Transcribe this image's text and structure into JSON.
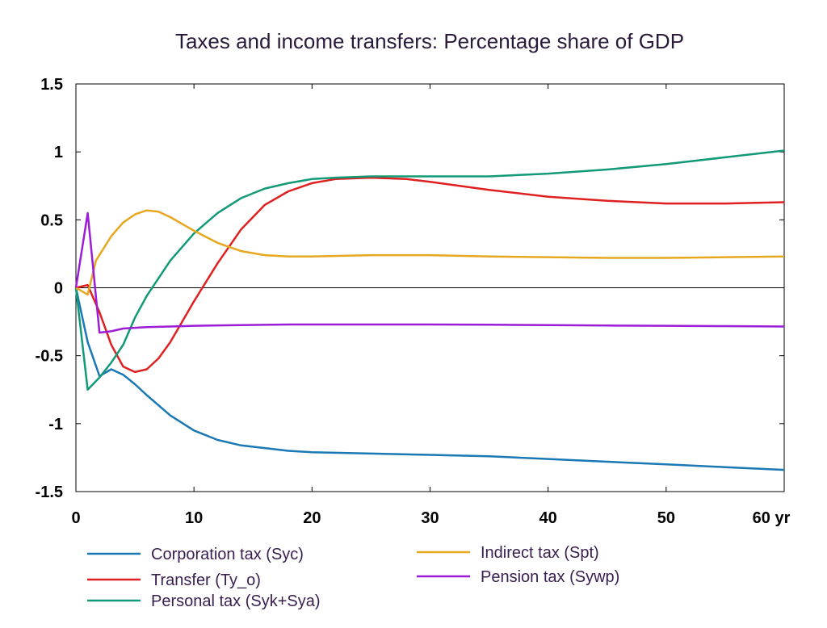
{
  "chart_data": {
    "type": "line",
    "title": "Taxes and income transfers: Percentage share of GDP",
    "xlabel": "",
    "ylabel": "",
    "xlim": [
      0,
      60
    ],
    "ylim": [
      -1.5,
      1.5
    ],
    "x_ticks": [
      0,
      10,
      20,
      30,
      40,
      50,
      60
    ],
    "x_tick_labels": [
      "0",
      "10",
      "20",
      "30",
      "40",
      "50",
      "60 yr"
    ],
    "y_ticks": [
      1.5,
      1,
      0.5,
      0,
      -0.5,
      -1,
      -1.5
    ],
    "y_tick_labels": [
      "1.5",
      "1",
      "0.5",
      "0",
      "-0.5",
      "-1",
      "-1.5"
    ],
    "grid": false,
    "zero_line": true,
    "legend": "bottom",
    "series": [
      {
        "name": "Corporation tax (Syc)",
        "color": "#1a78b4",
        "points": [
          [
            0,
            0
          ],
          [
            1,
            -0.4
          ],
          [
            2,
            -0.65
          ],
          [
            3,
            -0.6
          ],
          [
            4,
            -0.64
          ],
          [
            5,
            -0.71
          ],
          [
            6,
            -0.79
          ],
          [
            8,
            -0.94
          ],
          [
            10,
            -1.05
          ],
          [
            12,
            -1.12
          ],
          [
            14,
            -1.16
          ],
          [
            16,
            -1.18
          ],
          [
            18,
            -1.2
          ],
          [
            20,
            -1.21
          ],
          [
            25,
            -1.22
          ],
          [
            30,
            -1.23
          ],
          [
            35,
            -1.24
          ],
          [
            40,
            -1.26
          ],
          [
            45,
            -1.28
          ],
          [
            50,
            -1.3
          ],
          [
            55,
            -1.32
          ],
          [
            60,
            -1.34
          ]
        ]
      },
      {
        "name": "Transfer (Ty_o)",
        "color": "#e02020",
        "points": [
          [
            0,
            0
          ],
          [
            1,
            0.02
          ],
          [
            2,
            -0.18
          ],
          [
            3,
            -0.42
          ],
          [
            4,
            -0.58
          ],
          [
            5,
            -0.62
          ],
          [
            6,
            -0.6
          ],
          [
            7,
            -0.52
          ],
          [
            8,
            -0.4
          ],
          [
            9,
            -0.25
          ],
          [
            10,
            -0.1
          ],
          [
            12,
            0.18
          ],
          [
            14,
            0.43
          ],
          [
            16,
            0.61
          ],
          [
            18,
            0.71
          ],
          [
            20,
            0.77
          ],
          [
            22,
            0.8
          ],
          [
            25,
            0.81
          ],
          [
            28,
            0.8
          ],
          [
            30,
            0.78
          ],
          [
            35,
            0.72
          ],
          [
            40,
            0.67
          ],
          [
            45,
            0.64
          ],
          [
            50,
            0.62
          ],
          [
            55,
            0.62
          ],
          [
            60,
            0.63
          ]
        ]
      },
      {
        "name": "Personal tax (Syk+Sya)",
        "color": "#129a78",
        "points": [
          [
            0,
            0
          ],
          [
            1,
            -0.75
          ],
          [
            2,
            -0.66
          ],
          [
            3,
            -0.55
          ],
          [
            4,
            -0.42
          ],
          [
            5,
            -0.22
          ],
          [
            6,
            -0.06
          ],
          [
            8,
            0.2
          ],
          [
            10,
            0.4
          ],
          [
            12,
            0.55
          ],
          [
            14,
            0.66
          ],
          [
            16,
            0.73
          ],
          [
            18,
            0.77
          ],
          [
            20,
            0.8
          ],
          [
            22,
            0.81
          ],
          [
            25,
            0.82
          ],
          [
            30,
            0.82
          ],
          [
            35,
            0.82
          ],
          [
            40,
            0.84
          ],
          [
            45,
            0.87
          ],
          [
            50,
            0.91
          ],
          [
            55,
            0.96
          ],
          [
            60,
            1.01
          ]
        ]
      },
      {
        "name": "Indirect tax (Spt)",
        "color": "#e6a820",
        "points": [
          [
            0,
            0
          ],
          [
            1,
            -0.05
          ],
          [
            1.7,
            0.2
          ],
          [
            3,
            0.38
          ],
          [
            4,
            0.48
          ],
          [
            5,
            0.54
          ],
          [
            6,
            0.57
          ],
          [
            7,
            0.56
          ],
          [
            8,
            0.52
          ],
          [
            10,
            0.42
          ],
          [
            12,
            0.33
          ],
          [
            14,
            0.27
          ],
          [
            16,
            0.24
          ],
          [
            18,
            0.23
          ],
          [
            20,
            0.23
          ],
          [
            25,
            0.24
          ],
          [
            30,
            0.24
          ],
          [
            35,
            0.23
          ],
          [
            40,
            0.225
          ],
          [
            45,
            0.22
          ],
          [
            50,
            0.22
          ],
          [
            55,
            0.225
          ],
          [
            60,
            0.23
          ]
        ]
      },
      {
        "name": "Pension tax (Sywp)",
        "color": "#9c1cd8",
        "points": [
          [
            0,
            0
          ],
          [
            1,
            0.55
          ],
          [
            2,
            -0.33
          ],
          [
            3,
            -0.32
          ],
          [
            4,
            -0.3
          ],
          [
            6,
            -0.29
          ],
          [
            8,
            -0.285
          ],
          [
            10,
            -0.28
          ],
          [
            14,
            -0.275
          ],
          [
            18,
            -0.27
          ],
          [
            25,
            -0.27
          ],
          [
            30,
            -0.27
          ],
          [
            35,
            -0.272
          ],
          [
            40,
            -0.275
          ],
          [
            45,
            -0.278
          ],
          [
            50,
            -0.28
          ],
          [
            55,
            -0.282
          ],
          [
            60,
            -0.285
          ]
        ]
      }
    ]
  }
}
